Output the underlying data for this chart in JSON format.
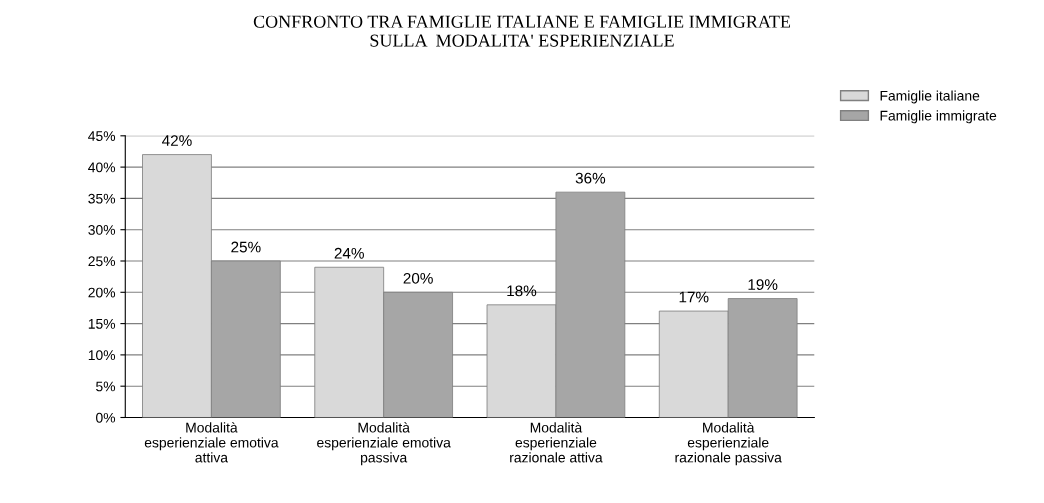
{
  "chart_data": {
    "type": "bar",
    "title": "CONFRONTO TRA FAMIGLIE ITALIANE E FAMIGLIE IMMIGRATE\nSULLA  MODALITA' ESPERIENZIALE",
    "categories": [
      "Modalità\nesperienziale emotiva\nattiva",
      "Modalità\nesperienziale emotiva\npassiva",
      "Modalità\nesperienziale\nrazionale attiva",
      "Modalità\nesperienziale\nrazionale passiva"
    ],
    "series": [
      {
        "name": "Famiglie italiane",
        "color": "#d9d9d9",
        "values": [
          42,
          24,
          18,
          17
        ],
        "value_labels": [
          "42%",
          "24%",
          "18%",
          "17%"
        ]
      },
      {
        "name": "Famiglie immigrate",
        "color": "#a6a6a6",
        "values": [
          25,
          20,
          36,
          19
        ],
        "value_labels": [
          "25%",
          "20%",
          "36%",
          "19%"
        ]
      }
    ],
    "ylim": [
      0,
      45
    ],
    "yticks": [
      {
        "value": 0,
        "label": "0%"
      },
      {
        "value": 5,
        "label": "5%"
      },
      {
        "value": 10,
        "label": "10%"
      },
      {
        "value": 15,
        "label": "15%"
      },
      {
        "value": 20,
        "label": "20%"
      },
      {
        "value": 25,
        "label": "25%"
      },
      {
        "value": 30,
        "label": "30%"
      },
      {
        "value": 35,
        "label": "35%"
      },
      {
        "value": 40,
        "label": "40%"
      },
      {
        "value": 45,
        "label": "45%"
      }
    ],
    "grid": "y",
    "legend": "top right"
  }
}
